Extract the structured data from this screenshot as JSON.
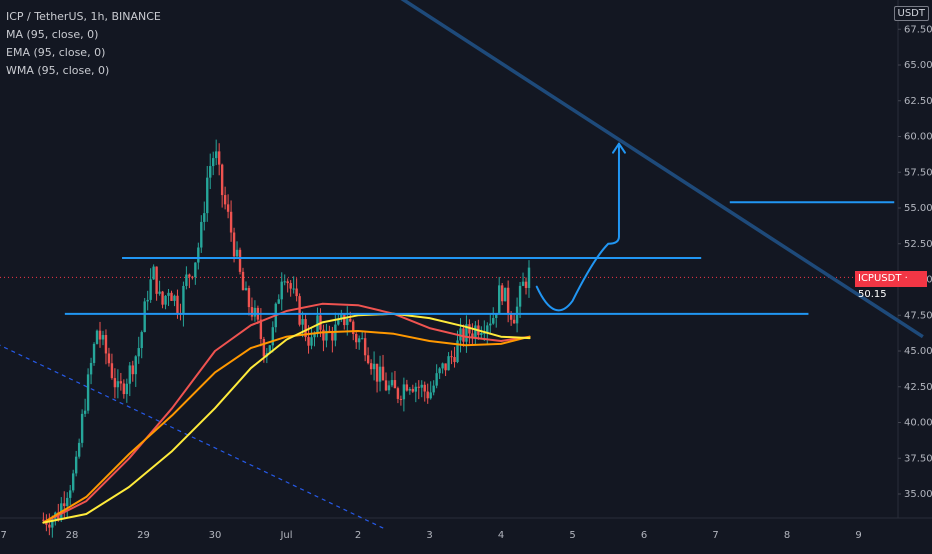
{
  "legend": {
    "symbol": "ICP / TetherUS, 1h, BINANCE",
    "ma": "MA (95, close, 0)",
    "ema": "EMA (95, close, 0)",
    "wma": "WMA (95, close, 0)"
  },
  "currency": "USDT",
  "current_price_label": {
    "symbol": "ICPUSDT",
    "price": "50.15"
  },
  "colors": {
    "background": "#131722",
    "candle_up": "#26a69a",
    "candle_down": "#ef5350",
    "ma": "#ef5350",
    "ema": "#ff9800",
    "wma": "#ffeb3b",
    "horizontal_levels": "#2196f3",
    "trendline": "#1e4a7a",
    "projection": "#2196f3",
    "price_tag": "#f23645"
  },
  "chart_data": {
    "type": "candlestick",
    "title": "ICP / TetherUS, 1h, BINANCE",
    "ylim": [
      32.5,
      68
    ],
    "y_ticks": [
      "35.00",
      "37.50",
      "40.00",
      "42.50",
      "45.00",
      "47.50",
      "50.00",
      "52.50",
      "55.00",
      "57.50",
      "60.00",
      "62.50",
      "65.00",
      "67.50"
    ],
    "x_ticks": [
      {
        "label": "27",
        "day": 27
      },
      {
        "label": "28",
        "day": 28
      },
      {
        "label": "29",
        "day": 29
      },
      {
        "label": "30",
        "day": 30
      },
      {
        "label": "Jul",
        "day": 31
      },
      {
        "label": "2",
        "day": 32
      },
      {
        "label": "3",
        "day": 33
      },
      {
        "label": "4",
        "day": 34
      },
      {
        "label": "5",
        "day": 35
      },
      {
        "label": "6",
        "day": 36
      },
      {
        "label": "7",
        "day": 37
      },
      {
        "label": "8",
        "day": 38
      },
      {
        "label": "9",
        "day": 39
      }
    ],
    "x_unit": "days (27 = 27 June; Jul = 1 July)",
    "candles_path": [
      [
        27.6,
        33.2
      ],
      [
        27.8,
        33.5
      ],
      [
        27.9,
        35.0
      ],
      [
        28.05,
        36.5
      ],
      [
        28.15,
        40.5
      ],
      [
        28.25,
        43.5
      ],
      [
        28.35,
        46.5
      ],
      [
        28.5,
        44.5
      ],
      [
        28.65,
        42.0
      ],
      [
        28.8,
        43.5
      ],
      [
        28.95,
        45.5
      ],
      [
        29.05,
        49.0
      ],
      [
        29.15,
        50.5
      ],
      [
        29.25,
        48.0
      ],
      [
        29.35,
        49.5
      ],
      [
        29.5,
        48.0
      ],
      [
        29.6,
        50.0
      ],
      [
        29.7,
        51.0
      ],
      [
        29.8,
        53.0
      ],
      [
        29.9,
        57.5
      ],
      [
        30.0,
        59.0
      ],
      [
        30.1,
        56.0
      ],
      [
        30.2,
        54.0
      ],
      [
        30.3,
        51.5
      ],
      [
        30.4,
        49.0
      ],
      [
        30.55,
        47.5
      ],
      [
        30.7,
        45.0
      ],
      [
        30.8,
        46.0
      ],
      [
        30.95,
        51.0
      ],
      [
        31.05,
        49.5
      ],
      [
        31.15,
        48.0
      ],
      [
        31.25,
        46.5
      ],
      [
        31.35,
        45.5
      ],
      [
        31.45,
        47.0
      ],
      [
        31.55,
        46.0
      ],
      [
        31.7,
        46.5
      ],
      [
        31.85,
        47.5
      ],
      [
        31.95,
        46.0
      ],
      [
        32.1,
        45.5
      ],
      [
        32.25,
        43.5
      ],
      [
        32.4,
        42.5
      ],
      [
        32.55,
        42.0
      ],
      [
        32.7,
        43.0
      ],
      [
        32.85,
        42.5
      ],
      [
        33.0,
        42.0
      ],
      [
        33.15,
        43.5
      ],
      [
        33.3,
        44.5
      ],
      [
        33.45,
        46.0
      ],
      [
        33.6,
        46.5
      ],
      [
        33.75,
        47.0
      ],
      [
        33.9,
        47.5
      ],
      [
        34.0,
        49.5
      ],
      [
        34.1,
        48.0
      ],
      [
        34.2,
        47.5
      ],
      [
        34.3,
        49.5
      ],
      [
        34.4,
        50.5
      ]
    ],
    "series": [
      {
        "name": "MA (95, close, 0)",
        "values": [
          [
            27.6,
            33.0
          ],
          [
            28.2,
            34.5
          ],
          [
            28.8,
            37.5
          ],
          [
            29.4,
            41.0
          ],
          [
            30.0,
            45.0
          ],
          [
            30.5,
            46.8
          ],
          [
            31.0,
            47.8
          ],
          [
            31.5,
            48.3
          ],
          [
            32.0,
            48.2
          ],
          [
            32.5,
            47.6
          ],
          [
            33.0,
            46.6
          ],
          [
            33.5,
            46.0
          ],
          [
            34.0,
            45.7
          ],
          [
            34.4,
            46.0
          ]
        ]
      },
      {
        "name": "EMA (95, close, 0)",
        "values": [
          [
            27.6,
            33.0
          ],
          [
            28.2,
            34.8
          ],
          [
            28.8,
            37.8
          ],
          [
            29.4,
            40.5
          ],
          [
            30.0,
            43.5
          ],
          [
            30.5,
            45.2
          ],
          [
            31.0,
            46.0
          ],
          [
            31.5,
            46.3
          ],
          [
            32.0,
            46.4
          ],
          [
            32.5,
            46.2
          ],
          [
            33.0,
            45.7
          ],
          [
            33.5,
            45.4
          ],
          [
            34.0,
            45.5
          ],
          [
            34.4,
            46.0
          ]
        ]
      },
      {
        "name": "WMA (95, close, 0)",
        "values": [
          [
            27.6,
            33.0
          ],
          [
            28.2,
            33.6
          ],
          [
            28.8,
            35.5
          ],
          [
            29.4,
            38.0
          ],
          [
            30.0,
            41.0
          ],
          [
            30.5,
            43.8
          ],
          [
            31.0,
            45.8
          ],
          [
            31.5,
            47.0
          ],
          [
            32.0,
            47.5
          ],
          [
            32.5,
            47.6
          ],
          [
            33.0,
            47.3
          ],
          [
            33.5,
            46.7
          ],
          [
            34.0,
            46.0
          ],
          [
            34.4,
            45.9
          ]
        ]
      }
    ],
    "annotations": {
      "resistance_level": {
        "price": 51.5,
        "from_day": 28.7,
        "to_day": 36.8
      },
      "support_level": {
        "price": 47.6,
        "from_day": 27.9,
        "to_day": 38.3
      },
      "target_level": {
        "price": 55.4,
        "from_day": 37.2,
        "to_day": 39.5
      },
      "descending_trendline": {
        "from": [
          32.5,
          70.0
        ],
        "to": [
          39.9,
          46.0
        ]
      },
      "dashed_trendline": {
        "from": [
          26.95,
          45.5
        ],
        "to": [
          32.4,
          32.5
        ]
      },
      "projection_path": [
        [
          34.5,
          49.5
        ],
        [
          34.75,
          48.0
        ],
        [
          35.0,
          48.5
        ],
        [
          35.3,
          51.5
        ],
        [
          35.5,
          52.5
        ],
        [
          35.65,
          53.0
        ],
        [
          35.65,
          59.5
        ]
      ]
    }
  }
}
